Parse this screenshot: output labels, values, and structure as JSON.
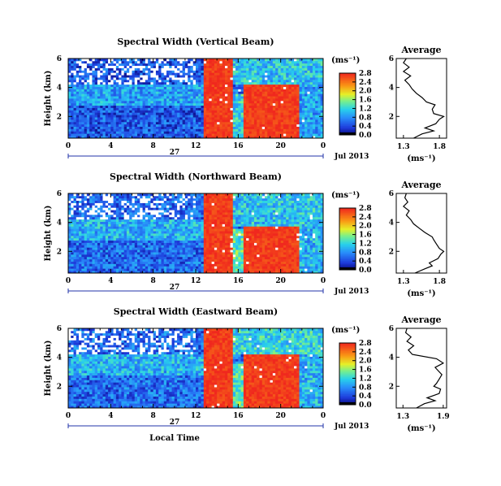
{
  "chart_data": [
    {
      "type": "heatmap",
      "title": "Spectral Width (Vertical Beam)",
      "ylabel": "Height (km)",
      "xlabel": "",
      "x_range": [
        0,
        24
      ],
      "x_ticks": [
        "0",
        "4",
        "8",
        "12",
        "16",
        "20",
        "0"
      ],
      "y_range": [
        0.5,
        6
      ],
      "y_ticks": [
        "2",
        "4",
        "6"
      ],
      "date_label": "27",
      "month_label": "Jul 2013",
      "grid": false,
      "colorbar": {
        "label": "(ms⁻¹)",
        "ticks": [
          "0.0",
          "0.4",
          "0.8",
          "1.2",
          "1.6",
          "2.0",
          "2.4",
          "2.8"
        ],
        "range": [
          0,
          2.8
        ]
      },
      "regions": [
        {
          "x": [
            0,
            12.8
          ],
          "y": [
            0.5,
            6
          ],
          "value": 0.5
        },
        {
          "x": [
            0,
            12.8
          ],
          "y": [
            2.8,
            4.2
          ],
          "value": 0.9
        },
        {
          "x": [
            12.8,
            15.4
          ],
          "y": [
            0.5,
            6
          ],
          "value": 2.7
        },
        {
          "x": [
            15.4,
            16.6
          ],
          "y": [
            0.5,
            3.6
          ],
          "value": 1.2
        },
        {
          "x": [
            16.6,
            21.8
          ],
          "y": [
            0.5,
            4.2
          ],
          "value": 2.7
        },
        {
          "x": [
            15.4,
            24
          ],
          "y": [
            4.2,
            6
          ],
          "value": 1.1
        },
        {
          "x": [
            21.8,
            24
          ],
          "y": [
            0.5,
            4.2
          ],
          "value": 0.9
        }
      ],
      "average_panel": {
        "title": "Average",
        "xlabel": "(ms⁻¹)",
        "x_ticks": [
          "1.3",
          "1.8"
        ],
        "x_range": [
          1.2,
          1.9
        ],
        "y_ticks": [
          "2",
          "4",
          "6"
        ],
        "y_range": [
          0.5,
          6
        ],
        "profile": {
          "height": [
            0.5,
            0.8,
            1.0,
            1.2,
            1.5,
            1.8,
            2.0,
            2.2,
            2.5,
            2.8,
            3.0,
            3.3,
            3.6,
            3.9,
            4.2,
            4.5,
            4.8,
            5.1,
            5.4,
            5.7,
            6.0
          ],
          "value": [
            1.44,
            1.56,
            1.72,
            1.6,
            1.75,
            1.8,
            1.86,
            1.72,
            1.7,
            1.74,
            1.62,
            1.56,
            1.48,
            1.42,
            1.38,
            1.32,
            1.4,
            1.3,
            1.38,
            1.3,
            1.34
          ]
        }
      }
    },
    {
      "type": "heatmap",
      "title": "Spectral Width (Northward Beam)",
      "ylabel": "Height (km)",
      "xlabel": "",
      "x_range": [
        0,
        24
      ],
      "x_ticks": [
        "0",
        "4",
        "8",
        "12",
        "16",
        "20",
        "0"
      ],
      "y_range": [
        0.5,
        6
      ],
      "y_ticks": [
        "2",
        "4",
        "6"
      ],
      "date_label": "27",
      "month_label": "Jul 2013",
      "grid": false,
      "colorbar": {
        "label": "(ms⁻¹)",
        "ticks": [
          "0.0",
          "0.4",
          "0.8",
          "1.2",
          "1.6",
          "2.0",
          "2.4",
          "2.8"
        ],
        "range": [
          0,
          2.8
        ]
      },
      "regions": [
        {
          "x": [
            0,
            12.8
          ],
          "y": [
            0.5,
            6
          ],
          "value": 0.6
        },
        {
          "x": [
            0,
            12.8
          ],
          "y": [
            2.8,
            4.2
          ],
          "value": 1.0
        },
        {
          "x": [
            12.8,
            15.4
          ],
          "y": [
            0.5,
            6
          ],
          "value": 2.7
        },
        {
          "x": [
            15.4,
            16.6
          ],
          "y": [
            0.5,
            3.6
          ],
          "value": 1.4
        },
        {
          "x": [
            16.6,
            21.8
          ],
          "y": [
            0.5,
            3.8
          ],
          "value": 2.7
        },
        {
          "x": [
            15.4,
            24
          ],
          "y": [
            3.8,
            6
          ],
          "value": 1.1
        },
        {
          "x": [
            21.8,
            24
          ],
          "y": [
            0.5,
            3.8
          ],
          "value": 1.0
        }
      ],
      "average_panel": {
        "title": "Average",
        "xlabel": "(ms⁻¹)",
        "x_ticks": [
          "1.3",
          "1.8"
        ],
        "x_range": [
          1.2,
          1.9
        ],
        "y_ticks": [
          "2",
          "4",
          "6"
        ],
        "y_range": [
          0.5,
          6
        ],
        "profile": {
          "height": [
            0.5,
            0.8,
            1.0,
            1.2,
            1.5,
            1.8,
            2.0,
            2.2,
            2.5,
            2.8,
            3.0,
            3.3,
            3.6,
            3.9,
            4.2,
            4.5,
            4.8,
            5.1,
            5.4,
            5.7,
            6.0
          ],
          "value": [
            1.46,
            1.6,
            1.7,
            1.66,
            1.78,
            1.82,
            1.86,
            1.8,
            1.76,
            1.72,
            1.7,
            1.6,
            1.52,
            1.44,
            1.4,
            1.34,
            1.38,
            1.3,
            1.36,
            1.32,
            1.34
          ]
        }
      }
    },
    {
      "type": "heatmap",
      "title": "Spectral Width (Eastward Beam)",
      "ylabel": "Height (km)",
      "xlabel": "Local Time",
      "x_range": [
        0,
        24
      ],
      "x_ticks": [
        "0",
        "4",
        "8",
        "12",
        "16",
        "20",
        "0"
      ],
      "y_range": [
        0.5,
        6
      ],
      "y_ticks": [
        "2",
        "4",
        "6"
      ],
      "date_label": "27",
      "month_label": "Jul 2013",
      "grid": false,
      "colorbar": {
        "label": "(ms⁻¹)",
        "ticks": [
          "0.0",
          "0.4",
          "0.8",
          "1.2",
          "1.6",
          "2.0",
          "2.4",
          "2.8"
        ],
        "range": [
          0,
          2.8
        ]
      },
      "regions": [
        {
          "x": [
            0,
            12.8
          ],
          "y": [
            0.5,
            6
          ],
          "value": 0.6
        },
        {
          "x": [
            0,
            12.8
          ],
          "y": [
            2.8,
            4.2
          ],
          "value": 1.0
        },
        {
          "x": [
            12.8,
            15.4
          ],
          "y": [
            0.5,
            6
          ],
          "value": 2.7
        },
        {
          "x": [
            15.4,
            16.6
          ],
          "y": [
            0.5,
            3.6
          ],
          "value": 1.4
        },
        {
          "x": [
            16.6,
            21.8
          ],
          "y": [
            0.5,
            4.2
          ],
          "value": 2.7
        },
        {
          "x": [
            15.4,
            24
          ],
          "y": [
            4.2,
            6
          ],
          "value": 1.2
        },
        {
          "x": [
            21.8,
            24
          ],
          "y": [
            0.5,
            4.2
          ],
          "value": 1.0
        }
      ],
      "average_panel": {
        "title": "Average",
        "xlabel": "(ms⁻¹)",
        "x_ticks": [
          "1.3",
          "1.9"
        ],
        "x_range": [
          1.2,
          1.95
        ],
        "y_ticks": [
          "2",
          "4",
          "6"
        ],
        "y_range": [
          0.5,
          6
        ],
        "profile": {
          "height": [
            0.5,
            0.8,
            1.0,
            1.2,
            1.5,
            1.8,
            2.0,
            2.2,
            2.5,
            2.8,
            3.0,
            3.3,
            3.6,
            3.9,
            4.2,
            4.5,
            4.8,
            5.1,
            5.4,
            5.7,
            6.0
          ],
          "value": [
            1.5,
            1.62,
            1.78,
            1.66,
            1.84,
            1.86,
            1.76,
            1.8,
            1.84,
            1.88,
            1.84,
            1.78,
            1.9,
            1.8,
            1.44,
            1.38,
            1.46,
            1.36,
            1.42,
            1.34,
            1.36
          ]
        }
      }
    }
  ]
}
